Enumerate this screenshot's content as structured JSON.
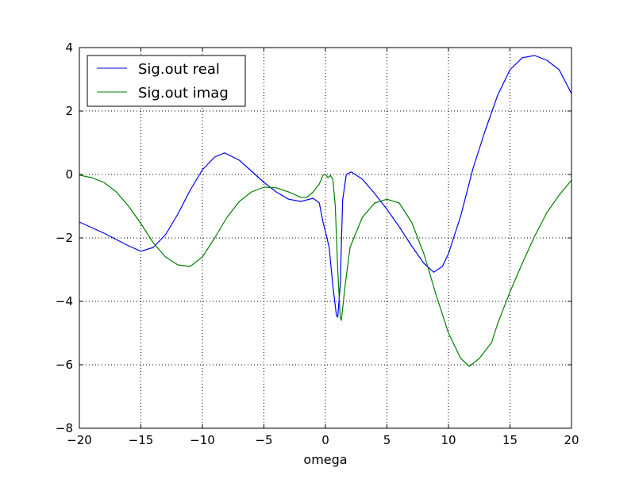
{
  "chart_data": {
    "type": "line",
    "title": "",
    "xlabel": "omega",
    "ylabel": "",
    "xlim": [
      -20,
      20
    ],
    "ylim": [
      -8,
      4
    ],
    "xticks": [
      -20,
      -15,
      -10,
      -5,
      0,
      5,
      10,
      15,
      20
    ],
    "yticks": [
      -8,
      -6,
      -4,
      -2,
      0,
      2,
      4
    ],
    "xtick_labels": [
      "−20",
      "−15",
      "−10",
      "−5",
      "0",
      "5",
      "10",
      "15",
      "20"
    ],
    "ytick_labels": [
      "−8",
      "−6",
      "−4",
      "−2",
      "0",
      "2",
      "4"
    ],
    "grid": true,
    "legend_position": "top-left",
    "series": [
      {
        "name": "Sig.out real",
        "color": "#0000ff",
        "x": [
          -20,
          -18,
          -16,
          -15,
          -14,
          -13,
          -12,
          -11,
          -10,
          -9,
          -8.2,
          -7,
          -6,
          -5,
          -4,
          -3,
          -2,
          -1,
          -0.5,
          -0.2,
          0,
          0.3,
          0.6,
          0.9,
          1.0,
          1.2,
          1.4,
          1.7,
          2.1,
          3,
          4,
          5,
          6,
          7,
          8,
          8.8,
          9.5,
          10,
          11,
          12,
          13,
          14,
          15,
          16,
          17,
          18,
          19,
          20
        ],
        "y": [
          -1.5,
          -1.85,
          -2.25,
          -2.42,
          -2.3,
          -1.9,
          -1.25,
          -0.5,
          0.15,
          0.55,
          0.68,
          0.45,
          0.1,
          -0.25,
          -0.55,
          -0.78,
          -0.85,
          -0.75,
          -0.9,
          -1.5,
          -1.8,
          -2.3,
          -3.5,
          -4.45,
          -4.5,
          -3.5,
          -0.8,
          0,
          0.08,
          -0.15,
          -0.6,
          -1.1,
          -1.65,
          -2.25,
          -2.8,
          -3.08,
          -2.9,
          -2.5,
          -1.3,
          0.2,
          1.4,
          2.5,
          3.3,
          3.68,
          3.75,
          3.6,
          3.3,
          2.55
        ]
      },
      {
        "name": "Sig.out imag",
        "color": "#008000",
        "x": [
          -20,
          -19,
          -18,
          -17,
          -16,
          -15,
          -14,
          -13,
          -12,
          -11,
          -10,
          -9,
          -8,
          -7,
          -6,
          -5,
          -4,
          -3,
          -2,
          -1.5,
          -1,
          -0.5,
          -0.2,
          0,
          0.2,
          0.4,
          0.6,
          0.8,
          1.0,
          1.2,
          1.3,
          1.6,
          2,
          3,
          4,
          5,
          6,
          7,
          8,
          9,
          10,
          11,
          11.7,
          12.5,
          13.5,
          14,
          15,
          16,
          17,
          18,
          19,
          20
        ],
        "y": [
          -0.02,
          -0.1,
          -0.25,
          -0.55,
          -1.0,
          -1.55,
          -2.15,
          -2.6,
          -2.85,
          -2.9,
          -2.6,
          -2.0,
          -1.35,
          -0.85,
          -0.55,
          -0.4,
          -0.42,
          -0.55,
          -0.72,
          -0.72,
          -0.55,
          -0.3,
          -0.02,
          0,
          -0.1,
          -0.03,
          -0.15,
          -1.0,
          -3.0,
          -4.5,
          -4.6,
          -3.5,
          -2.3,
          -1.35,
          -0.9,
          -0.78,
          -0.9,
          -1.5,
          -2.5,
          -3.8,
          -5.0,
          -5.8,
          -6.05,
          -5.8,
          -5.3,
          -4.7,
          -3.7,
          -2.8,
          -1.95,
          -1.2,
          -0.65,
          -0.18
        ]
      }
    ]
  }
}
